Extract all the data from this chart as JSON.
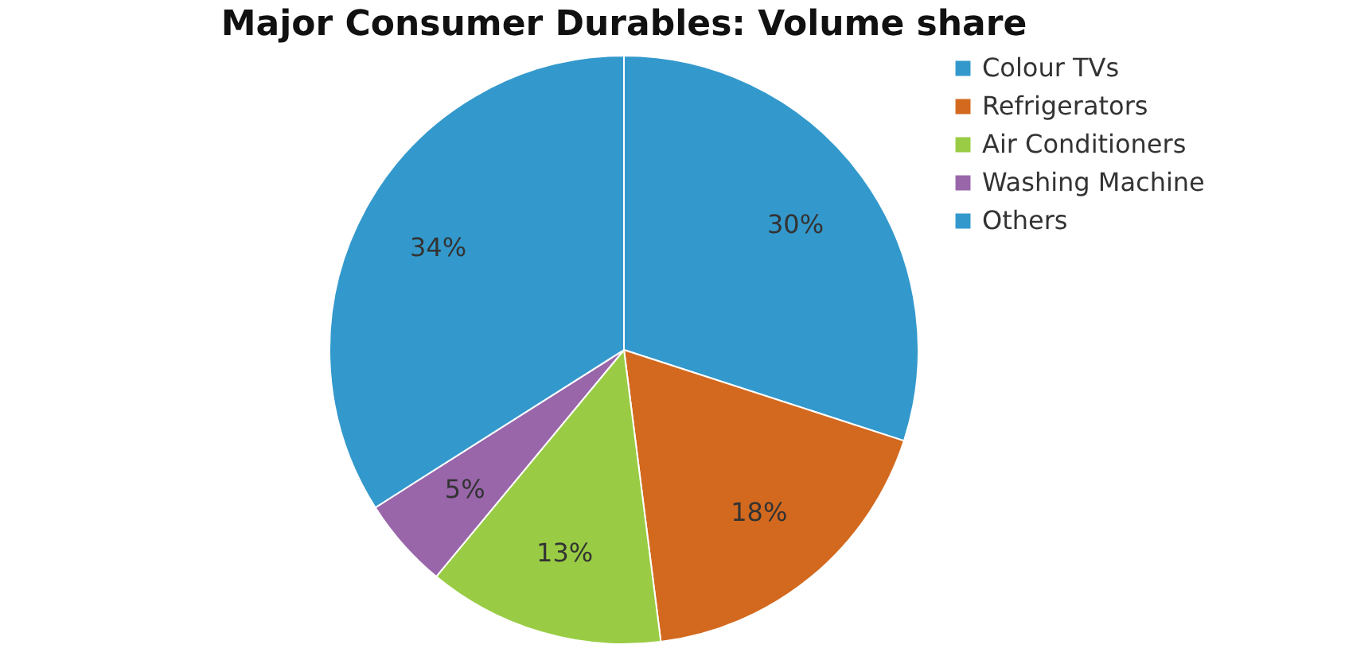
{
  "chart_data": {
    "type": "pie",
    "title": "Major Consumer Durables: Volume share",
    "categories": [
      "Colour TVs",
      "Refrigerators",
      "Air Conditioners",
      "Washing Machine",
      "Others"
    ],
    "values": [
      30,
      18,
      13,
      5,
      34
    ],
    "colors": [
      "#3399cc",
      "#d2691e",
      "#99cc44",
      "#9966aa",
      "#3399cc"
    ],
    "value_labels": [
      "30%",
      "18%",
      "13%",
      "5%",
      "34%"
    ],
    "legend": "top right"
  }
}
